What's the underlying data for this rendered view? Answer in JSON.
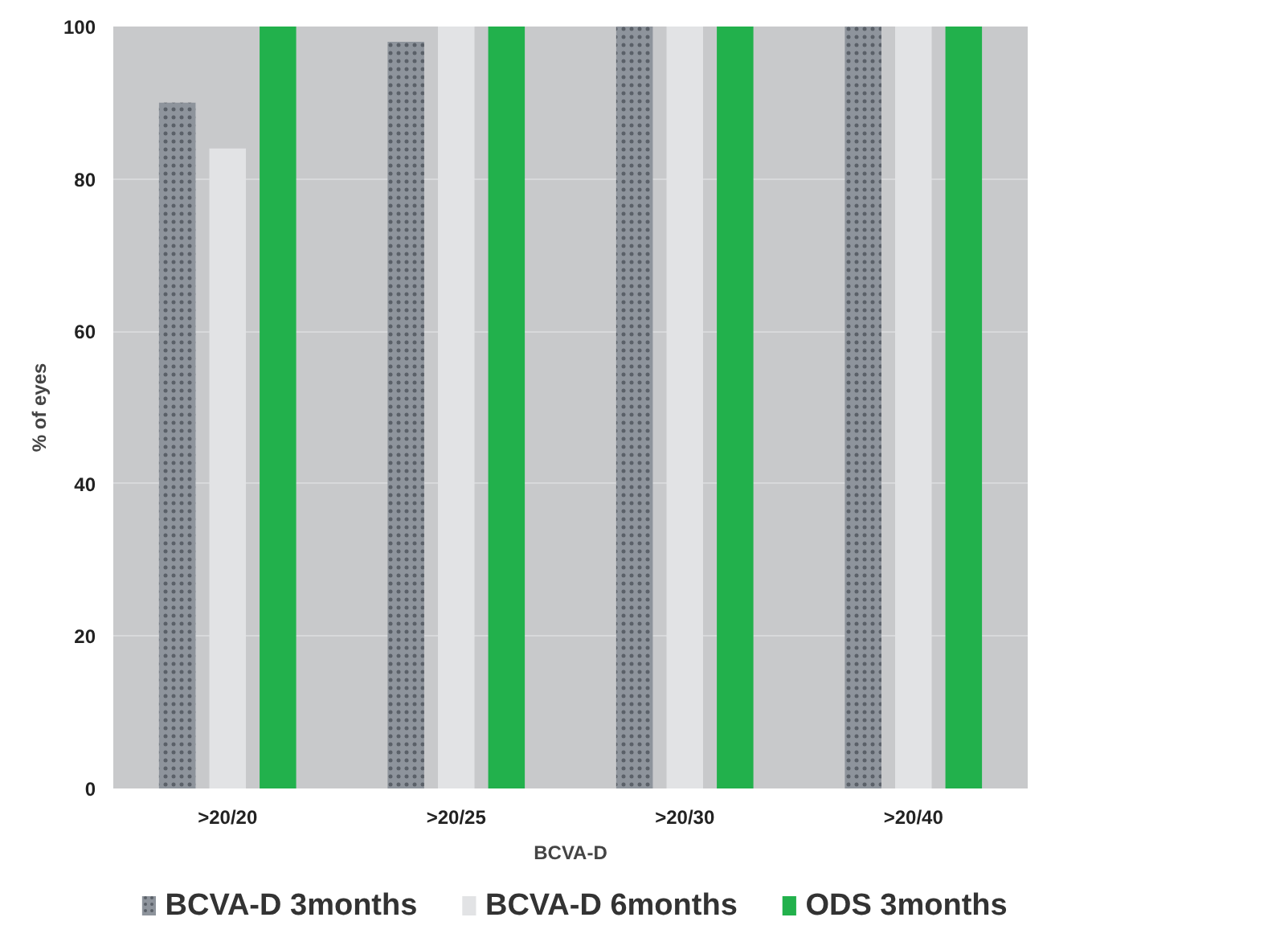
{
  "chart_data": {
    "type": "bar",
    "xlabel": "BCVA-D",
    "ylabel": "% of eyes",
    "categories": [
      ">20/20",
      ">20/25",
      ">20/30",
      ">20/40"
    ],
    "series": [
      {
        "name": "BCVA-D 3months",
        "color": "#8e949c",
        "values": [
          90,
          98,
          100,
          100
        ]
      },
      {
        "name": "BCVA-D 6months",
        "color": "#e2e3e5",
        "values": [
          84,
          100,
          100,
          100
        ]
      },
      {
        "name": "ODS 3months",
        "color": "#22b14c",
        "values": [
          100,
          100,
          100,
          100
        ]
      }
    ],
    "ylim": [
      0,
      100
    ],
    "yticks": [
      0,
      20,
      40,
      60,
      80,
      100
    ],
    "grid": "y",
    "legend": "bottom"
  }
}
